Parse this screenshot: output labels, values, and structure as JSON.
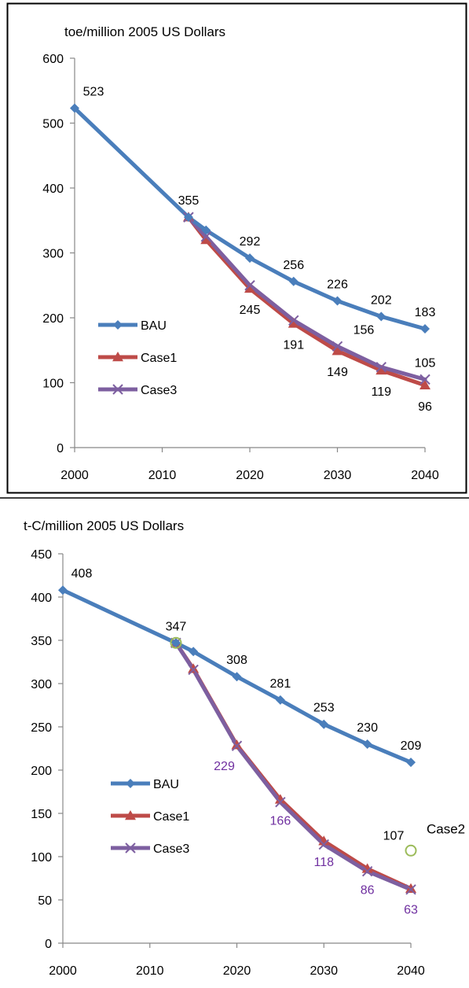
{
  "chart_data": [
    {
      "type": "line",
      "title": "toe/million 2005  US Dollars",
      "xlabel": "",
      "ylabel": "",
      "xlim": [
        2000,
        2040
      ],
      "ylim": [
        0,
        600
      ],
      "x_ticks": [
        2000,
        2010,
        2020,
        2030,
        2040
      ],
      "y_ticks": [
        0,
        100,
        200,
        300,
        400,
        500,
        600
      ],
      "grid": false,
      "legend_position": "bottom-left",
      "series": [
        {
          "name": "BAU",
          "color": "#4A7EBB",
          "marker": "diamond",
          "x": [
            2000,
            2013,
            2015,
            2020,
            2025,
            2030,
            2035,
            2040
          ],
          "values": [
            523,
            355,
            335,
            292,
            256,
            226,
            202,
            183
          ]
        },
        {
          "name": "Case1",
          "color": "#BE4B48",
          "marker": "triangle",
          "x": [
            2013,
            2015,
            2020,
            2025,
            2030,
            2035,
            2040
          ],
          "values": [
            355,
            320,
            245,
            191,
            149,
            119,
            96
          ]
        },
        {
          "name": "Case3",
          "color": "#7D5FA0",
          "marker": "x",
          "x": [
            2013,
            2015,
            2020,
            2025,
            2030,
            2035,
            2040
          ],
          "values": [
            355,
            325,
            250,
            196,
            156,
            124,
            105
          ]
        }
      ],
      "data_labels": [
        {
          "x": 2000,
          "y": 523,
          "text": "523",
          "color": "#000000",
          "pos": "above-right"
        },
        {
          "x": 2013,
          "y": 355,
          "text": "355",
          "color": "#000000",
          "pos": "above"
        },
        {
          "x": 2020,
          "y": 292,
          "text": "292",
          "color": "#000000",
          "pos": "above"
        },
        {
          "x": 2025,
          "y": 256,
          "text": "256",
          "color": "#000000",
          "pos": "above"
        },
        {
          "x": 2030,
          "y": 226,
          "text": "226",
          "color": "#000000",
          "pos": "above"
        },
        {
          "x": 2035,
          "y": 202,
          "text": "202",
          "color": "#000000",
          "pos": "above"
        },
        {
          "x": 2040,
          "y": 183,
          "text": "183",
          "color": "#000000",
          "pos": "above"
        },
        {
          "x": 2020,
          "y": 245,
          "text": "245",
          "color": "#000000",
          "pos": "below"
        },
        {
          "x": 2025,
          "y": 191,
          "text": "191",
          "color": "#000000",
          "pos": "below"
        },
        {
          "x": 2030,
          "y": 149,
          "text": "149",
          "color": "#000000",
          "pos": "below"
        },
        {
          "x": 2035,
          "y": 119,
          "text": "119",
          "color": "#000000",
          "pos": "below"
        },
        {
          "x": 2040,
          "y": 96,
          "text": "96",
          "color": "#000000",
          "pos": "below"
        },
        {
          "x": 2033,
          "y": 156,
          "text": "156",
          "color": "#000000",
          "pos": "above"
        },
        {
          "x": 2040,
          "y": 105,
          "text": "105",
          "color": "#000000",
          "pos": "above"
        }
      ]
    },
    {
      "type": "line",
      "title": "t-C/million 2005  US Dollars",
      "xlabel": "",
      "ylabel": "",
      "xlim": [
        2000,
        2040
      ],
      "ylim": [
        0,
        450
      ],
      "x_ticks": [
        2000,
        2010,
        2020,
        2030,
        2040
      ],
      "y_ticks": [
        0,
        50,
        100,
        150,
        200,
        250,
        300,
        350,
        400,
        450
      ],
      "grid": false,
      "legend_position": "bottom-left",
      "series": [
        {
          "name": "BAU",
          "color": "#4A7EBB",
          "marker": "diamond",
          "x": [
            2000,
            2013,
            2015,
            2020,
            2025,
            2030,
            2035,
            2040
          ],
          "values": [
            408,
            347,
            337,
            308,
            281,
            253,
            230,
            209
          ]
        },
        {
          "name": "Case1",
          "color": "#BE4B48",
          "marker": "triangle",
          "x": [
            2013,
            2015,
            2020,
            2025,
            2030,
            2035,
            2040
          ],
          "values": [
            347,
            317,
            229,
            166,
            118,
            86,
            63
          ]
        },
        {
          "name": "Case3",
          "color": "#7D5FA0",
          "marker": "x",
          "x": [
            2013,
            2015,
            2020,
            2025,
            2030,
            2035,
            2040
          ],
          "values": [
            347,
            316,
            228,
            163,
            114,
            83,
            62
          ]
        },
        {
          "name": "Case2",
          "color": "#9BBB59",
          "marker": "circle-open",
          "x": [
            2013,
            2040
          ],
          "values": [
            347,
            107
          ]
        }
      ],
      "data_labels": [
        {
          "x": 2000,
          "y": 408,
          "text": "408",
          "color": "#000000",
          "pos": "above-right"
        },
        {
          "x": 2013,
          "y": 347,
          "text": "347",
          "color": "#000000",
          "pos": "above"
        },
        {
          "x": 2020,
          "y": 308,
          "text": "308",
          "color": "#000000",
          "pos": "above"
        },
        {
          "x": 2025,
          "y": 281,
          "text": "281",
          "color": "#000000",
          "pos": "above"
        },
        {
          "x": 2030,
          "y": 253,
          "text": "253",
          "color": "#000000",
          "pos": "above"
        },
        {
          "x": 2035,
          "y": 230,
          "text": "230",
          "color": "#000000",
          "pos": "above"
        },
        {
          "x": 2040,
          "y": 209,
          "text": "209",
          "color": "#000000",
          "pos": "above"
        },
        {
          "x": 2040,
          "y": 107,
          "text": "107",
          "color": "#000000",
          "pos": "above-left"
        },
        {
          "x": 2020,
          "y": 229,
          "text": "229",
          "color": "#7030A0",
          "pos": "below-left"
        },
        {
          "x": 2025,
          "y": 166,
          "text": "166",
          "color": "#7030A0",
          "pos": "below"
        },
        {
          "x": 2030,
          "y": 118,
          "text": "118",
          "color": "#7030A0",
          "pos": "below"
        },
        {
          "x": 2035,
          "y": 86,
          "text": "86",
          "color": "#7030A0",
          "pos": "below"
        },
        {
          "x": 2040,
          "y": 63,
          "text": "63",
          "color": "#7030A0",
          "pos": "below"
        }
      ],
      "annotations": [
        {
          "text": "Case2",
          "color": "#000000",
          "near_series": "Case2"
        }
      ]
    }
  ]
}
